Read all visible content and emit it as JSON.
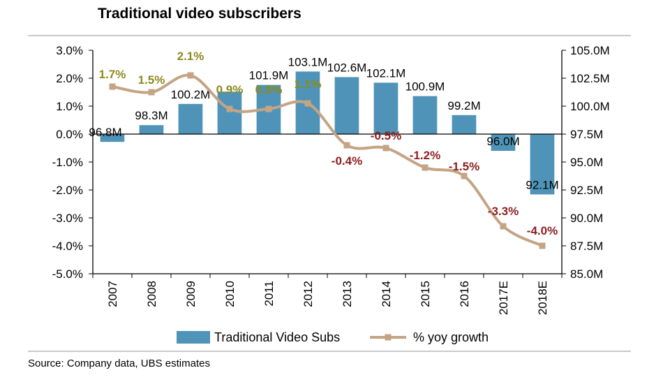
{
  "title": "Traditional video subscribers",
  "source": "Source:  Company data, UBS estimates",
  "colors": {
    "bar": "#4f94b8",
    "line": "#c4a484",
    "pos_label": "#8c8a1e",
    "neg_label": "#8b1f1f"
  },
  "chart_data": {
    "type": "bar",
    "title": "Traditional video subscribers",
    "categories": [
      "2007",
      "2008",
      "2009",
      "2010",
      "2011",
      "2012",
      "2013",
      "2014",
      "2015",
      "2016",
      "2017E",
      "2018E"
    ],
    "series": [
      {
        "name": "Traditional Video Subs",
        "type": "bar",
        "axis": "right",
        "values": [
          96.8,
          98.3,
          100.2,
          101.3,
          101.9,
          103.1,
          102.6,
          102.1,
          100.9,
          99.2,
          96.0,
          92.1
        ],
        "labels": [
          "96.8M",
          "98.3M",
          "100.2M",
          "",
          "101.9M",
          "103.1M",
          "102.6M",
          "102.1M",
          "100.9M",
          "99.2M",
          "96.0M",
          "92.1M"
        ]
      },
      {
        "name": "% yoy growth",
        "type": "line",
        "axis": "left",
        "values": [
          1.7,
          1.5,
          2.1,
          0.9,
          0.9,
          1.1,
          -0.4,
          -0.5,
          -1.2,
          -1.5,
          -3.3,
          -4.0
        ],
        "labels": [
          "1.7%",
          "1.5%",
          "2.1%",
          "0.9%",
          "0.9%",
          "1.1%",
          "-0.4%",
          "-0.5%",
          "-1.2%",
          "-1.5%",
          "-3.3%",
          "-4.0%"
        ]
      }
    ],
    "y_left": {
      "min": -5.0,
      "max": 3.0,
      "step": 1.0,
      "ticks": [
        "3.0%",
        "2.0%",
        "1.0%",
        "0.0%",
        "-1.0%",
        "-2.0%",
        "-3.0%",
        "-4.0%",
        "-5.0%"
      ]
    },
    "y_right": {
      "min": 85.0,
      "max": 105.0,
      "step": 2.5,
      "ticks": [
        "105.0M",
        "102.5M",
        "100.0M",
        "97.5M",
        "95.0M",
        "92.5M",
        "90.0M",
        "87.5M",
        "85.0M"
      ]
    },
    "legend": {
      "position": "bottom",
      "items": [
        {
          "label": "Traditional Video Subs"
        },
        {
          "label": "% yoy growth"
        }
      ]
    }
  }
}
